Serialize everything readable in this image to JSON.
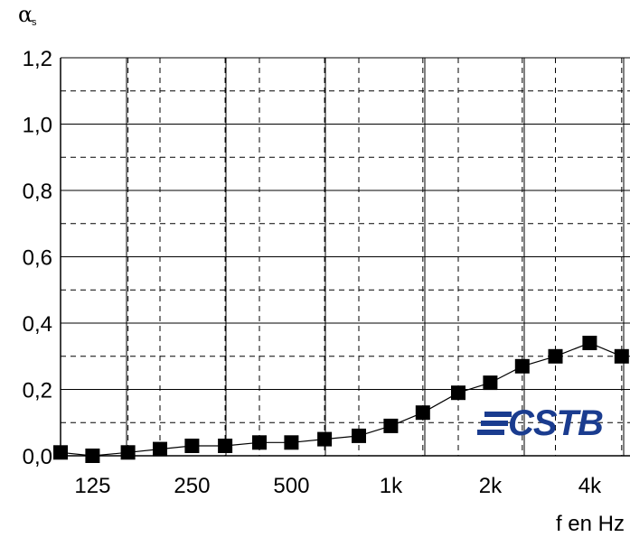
{
  "chart_data": {
    "type": "line",
    "ylabel": {
      "main": "α",
      "sub": "s"
    },
    "xlabel": "f en Hz",
    "ylim": [
      0,
      1.2
    ],
    "y_ticks": [
      {
        "value": 0.0,
        "label": "0,0"
      },
      {
        "value": 0.2,
        "label": "0,2"
      },
      {
        "value": 0.4,
        "label": "0,4"
      },
      {
        "value": 0.6,
        "label": "0,6"
      },
      {
        "value": 0.8,
        "label": "0,8"
      },
      {
        "value": 1.0,
        "label": "1,0"
      },
      {
        "value": 1.2,
        "label": "1,2"
      }
    ],
    "x_scale": "log",
    "xlim": [
      100,
      5000
    ],
    "x_ticks": [
      {
        "value": 125,
        "label": "125"
      },
      {
        "value": 250,
        "label": "250"
      },
      {
        "value": 500,
        "label": "500"
      },
      {
        "value": 1000,
        "label": "1k"
      },
      {
        "value": 2000,
        "label": "2k"
      },
      {
        "value": 4000,
        "label": "4k"
      }
    ],
    "grid": true,
    "series": [
      {
        "marker": "square",
        "color": "#000000",
        "x": [
          100,
          125,
          160,
          200,
          250,
          315,
          400,
          500,
          630,
          800,
          1000,
          1250,
          1600,
          2000,
          2500,
          3150,
          4000,
          5000
        ],
        "y": [
          0.01,
          0.0,
          0.01,
          0.02,
          0.03,
          0.03,
          0.04,
          0.04,
          0.05,
          0.06,
          0.09,
          0.13,
          0.19,
          0.22,
          0.27,
          0.3,
          0.34,
          0.3
        ]
      }
    ]
  },
  "logo": {
    "text": "CSTB",
    "color": "#1a3c8f"
  }
}
